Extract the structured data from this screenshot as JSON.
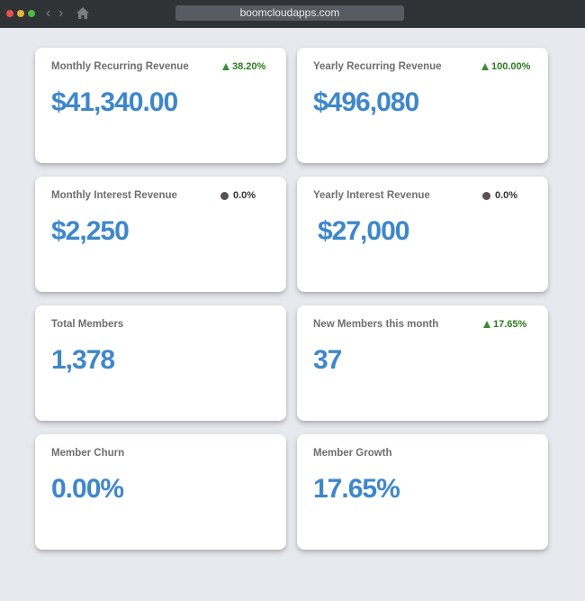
{
  "browser": {
    "url": "boomcloudapps.com"
  },
  "cards": [
    {
      "title": "Monthly Recurring Revenue",
      "value": "$41,340.00",
      "badge": "38.20%",
      "trend": "up"
    },
    {
      "title": "Yearly Recurring Revenue",
      "value": "$496,080",
      "badge": "100.00%",
      "trend": "up"
    },
    {
      "title": "Monthly Interest Revenue",
      "value": "$2,250",
      "badge": "0.0%",
      "trend": "flat"
    },
    {
      "title": "Yearly Interest Revenue",
      "value": "$27,000",
      "badge": "0.0%",
      "trend": "flat"
    },
    {
      "title": "Total Members",
      "value": "1,378"
    },
    {
      "title": "New Members this month",
      "value": "37",
      "badge": "17.65%",
      "trend": "up"
    },
    {
      "title": "Member Churn",
      "value": "0.00%"
    },
    {
      "title": "Member Growth",
      "value": "17.65%"
    }
  ],
  "colors": {
    "value_blue": "#3e87cb",
    "trend_up_green": "#2b7a1f",
    "trend_flat_dot": "#5a5153",
    "background": "#e7e9ee",
    "titlebar": "#303336"
  },
  "icons": {
    "close": "red-dot-icon",
    "minimize": "yellow-dot-icon",
    "maximize": "green-dot-icon",
    "back": "chevron-left-icon",
    "forward": "chevron-right-icon",
    "home": "home-icon",
    "trend_up": "triangle-up-icon",
    "trend_flat": "dot-icon"
  }
}
